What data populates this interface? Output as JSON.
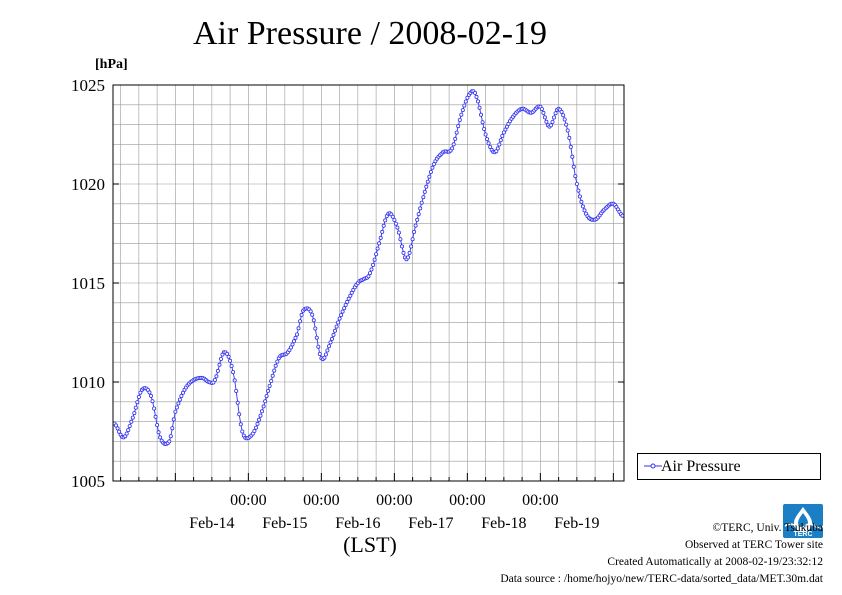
{
  "chart_data": {
    "type": "line",
    "title": "Air Pressure / 2008-02-19",
    "ylabel_unit": "[hPa]",
    "xlabel": "(LST)",
    "ylim": [
      1005,
      1025
    ],
    "yticks": [
      1005,
      1010,
      1015,
      1020,
      1025
    ],
    "ytick_labels": [
      "1005",
      "1010",
      "1015",
      "1020",
      "1025"
    ],
    "xlim_hours": [
      -20.5,
      147.5
    ],
    "xtick_time_labels": [
      "00:00",
      "00:00",
      "00:00",
      "00:00",
      "00:00"
    ],
    "xtick_date_labels": [
      "Feb-14",
      "Feb-15",
      "Feb-16",
      "Feb-17",
      "Feb-18",
      "Feb-19"
    ],
    "grid": true,
    "legend_position": "right",
    "series": [
      {
        "name": "Air Pressure",
        "color": "#3333ee",
        "marker": "open-circle",
        "x_hours": [
          -20,
          -17,
          -14,
          -11,
          -8,
          -5,
          -2,
          0,
          3,
          6,
          9,
          11,
          13,
          16,
          19,
          22,
          25,
          28,
          31,
          34,
          37,
          40,
          42,
          45,
          48,
          51,
          54,
          57,
          60,
          62,
          64,
          67,
          70,
          73,
          76,
          79,
          82,
          85,
          88,
          91,
          94,
          97,
          99,
          102,
          105,
          108,
          111,
          114,
          117,
          120,
          123,
          126,
          129,
          132,
          135,
          138,
          141,
          144,
          147
        ],
        "values": [
          1007.9,
          1007.2,
          1008.2,
          1009.6,
          1009.3,
          1007.2,
          1007.0,
          1008.5,
          1009.6,
          1010.1,
          1010.2,
          1010.0,
          1010.1,
          1011.5,
          1010.5,
          1007.5,
          1007.3,
          1008.3,
          1009.8,
          1011.2,
          1011.5,
          1012.4,
          1013.6,
          1013.4,
          1011.2,
          1012.0,
          1013.2,
          1014.2,
          1015.0,
          1015.2,
          1015.5,
          1017.0,
          1018.5,
          1017.8,
          1016.2,
          1017.9,
          1019.6,
          1021.0,
          1021.6,
          1021.8,
          1023.5,
          1024.6,
          1024.4,
          1022.5,
          1021.6,
          1022.6,
          1023.4,
          1023.8,
          1023.6,
          1023.9,
          1022.9,
          1023.8,
          1022.7,
          1020.0,
          1018.5,
          1018.2,
          1018.7,
          1019.0,
          1018.4
        ]
      }
    ]
  },
  "legend": {
    "label": "Air Pressure"
  },
  "credits": {
    "copyright": "©TERC, Univ. Tsukuba",
    "observed": "Observed at TERC Tower site",
    "created": "Created Automatically at 2008-02-19/23:32:12",
    "source": "Data source : /home/hojyo/new/TERC-data/sorted_data/MET.30m.dat"
  },
  "logo": {
    "text": "TERC",
    "color": "#1a7fc4"
  }
}
